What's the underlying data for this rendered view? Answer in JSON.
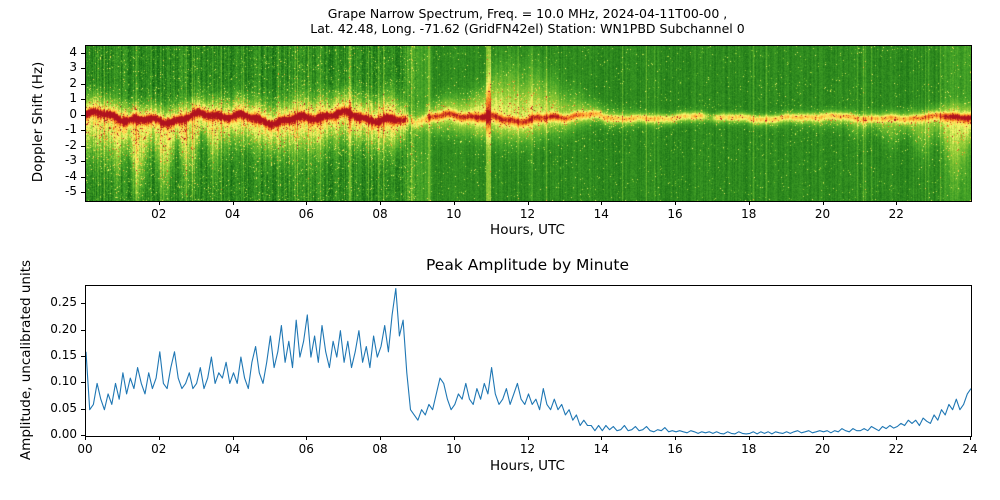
{
  "title": {
    "line1": "Grape Narrow Spectrum, Freq. = 10.0 MHz, 2024-04-11T00-00 ,",
    "line2": "Lat.  42.48, Long. -71.62 (GridFN42el) Station: WN1PBD Subchannel 0"
  },
  "chart_data": [
    {
      "type": "heatmap",
      "title": "",
      "xlabel": "Hours, UTC",
      "ylabel": "Doppler Shift (Hz)",
      "xlim": [
        0,
        24
      ],
      "ylim": [
        -5.5,
        4.5
      ],
      "x_ticks": [
        2,
        4,
        6,
        8,
        10,
        12,
        14,
        16,
        18,
        20,
        22
      ],
      "x_tick_labels": [
        "02",
        "04",
        "06",
        "08",
        "10",
        "12",
        "14",
        "16",
        "18",
        "20",
        "22"
      ],
      "y_ticks": [
        4,
        3,
        2,
        1,
        0,
        -1,
        -2,
        -3,
        -4,
        -5
      ],
      "y_tick_labels": [
        "4",
        "3",
        "2",
        "1",
        "0",
        "-1",
        "-2",
        "-3",
        "-4",
        "-5"
      ],
      "colormap_stops": [
        [
          0.0,
          10,
          95,
          15
        ],
        [
          0.3,
          70,
          165,
          40
        ],
        [
          0.5,
          150,
          205,
          55
        ],
        [
          0.63,
          250,
          250,
          110
        ],
        [
          0.78,
          255,
          190,
          60
        ],
        [
          0.88,
          243,
          110,
          30
        ],
        [
          1.0,
          175,
          18,
          30
        ]
      ],
      "background_level": 0.18,
      "carrier_center_hz": 0,
      "keyframes": [
        [
          0.0,
          1.0,
          0.8,
          1.8
        ],
        [
          1.5,
          1.0,
          0.7,
          2.3
        ],
        [
          3.0,
          1.0,
          0.7,
          1.8
        ],
        [
          4.0,
          1.0,
          0.8,
          1.2
        ],
        [
          6.0,
          1.0,
          0.9,
          1.5
        ],
        [
          7.5,
          1.0,
          0.9,
          1.2
        ],
        [
          8.3,
          1.05,
          1.1,
          1.4
        ],
        [
          8.6,
          0.9,
          0.8,
          1.0
        ],
        [
          8.75,
          0.3,
          0.4,
          0.5
        ],
        [
          9.2,
          0.45,
          0.5,
          0.6
        ],
        [
          9.5,
          0.75,
          0.7,
          0.8
        ],
        [
          10.3,
          0.8,
          0.8,
          0.8
        ],
        [
          10.85,
          1.0,
          1.3,
          1.0
        ],
        [
          11.0,
          0.9,
          1.8,
          1.0
        ],
        [
          11.5,
          0.85,
          2.2,
          1.0
        ],
        [
          12.3,
          0.8,
          1.8,
          0.9
        ],
        [
          13.0,
          0.65,
          1.1,
          0.7
        ],
        [
          13.8,
          0.55,
          0.5,
          0.45
        ],
        [
          15.0,
          0.5,
          0.3,
          0.35
        ],
        [
          16.7,
          0.5,
          0.25,
          0.3
        ],
        [
          16.9,
          0.18,
          0.2,
          0.25
        ],
        [
          17.1,
          0.48,
          0.22,
          0.3
        ],
        [
          19.0,
          0.5,
          0.25,
          0.35
        ],
        [
          21.0,
          0.52,
          0.3,
          0.6
        ],
        [
          22.0,
          0.55,
          0.35,
          0.9
        ],
        [
          23.0,
          0.6,
          0.4,
          1.3
        ],
        [
          23.6,
          0.7,
          0.6,
          1.9
        ],
        [
          24.0,
          0.7,
          0.5,
          1.6
        ]
      ]
    },
    {
      "type": "line",
      "title": "Peak Amplitude by Minute",
      "xlabel": "Hours, UTC",
      "ylabel": "Amplitude, uncalibrated units",
      "xlim": [
        0,
        24
      ],
      "ylim": [
        0,
        0.285
      ],
      "x_ticks": [
        0,
        2,
        4,
        6,
        8,
        10,
        12,
        14,
        16,
        18,
        20,
        22,
        24
      ],
      "x_tick_labels": [
        "00",
        "02",
        "04",
        "06",
        "08",
        "10",
        "12",
        "14",
        "16",
        "18",
        "20",
        "22",
        "24"
      ],
      "y_ticks": [
        0.0,
        0.05,
        0.1,
        0.15,
        0.2,
        0.25
      ],
      "y_tick_labels": [
        "0.00",
        "0.05",
        "0.10",
        "0.15",
        "0.20",
        "0.25"
      ],
      "line_color": "#1f77b4",
      "x_step_hours": 0.1,
      "values": [
        0.16,
        0.05,
        0.06,
        0.1,
        0.07,
        0.05,
        0.08,
        0.06,
        0.1,
        0.07,
        0.12,
        0.08,
        0.11,
        0.09,
        0.13,
        0.1,
        0.08,
        0.12,
        0.09,
        0.11,
        0.16,
        0.1,
        0.09,
        0.13,
        0.16,
        0.11,
        0.09,
        0.1,
        0.12,
        0.09,
        0.1,
        0.13,
        0.09,
        0.11,
        0.15,
        0.1,
        0.12,
        0.11,
        0.14,
        0.1,
        0.12,
        0.1,
        0.15,
        0.11,
        0.09,
        0.14,
        0.17,
        0.12,
        0.1,
        0.14,
        0.19,
        0.13,
        0.16,
        0.21,
        0.14,
        0.18,
        0.13,
        0.22,
        0.15,
        0.18,
        0.23,
        0.15,
        0.19,
        0.14,
        0.21,
        0.16,
        0.13,
        0.18,
        0.15,
        0.2,
        0.14,
        0.18,
        0.13,
        0.16,
        0.2,
        0.14,
        0.17,
        0.13,
        0.19,
        0.15,
        0.17,
        0.21,
        0.16,
        0.23,
        0.28,
        0.19,
        0.22,
        0.12,
        0.05,
        0.04,
        0.03,
        0.05,
        0.04,
        0.06,
        0.05,
        0.08,
        0.11,
        0.1,
        0.07,
        0.05,
        0.06,
        0.08,
        0.07,
        0.1,
        0.07,
        0.06,
        0.09,
        0.07,
        0.1,
        0.08,
        0.13,
        0.08,
        0.06,
        0.07,
        0.09,
        0.06,
        0.08,
        0.1,
        0.07,
        0.06,
        0.08,
        0.06,
        0.07,
        0.05,
        0.09,
        0.06,
        0.05,
        0.07,
        0.05,
        0.06,
        0.04,
        0.05,
        0.03,
        0.04,
        0.02,
        0.03,
        0.02,
        0.02,
        0.01,
        0.02,
        0.01,
        0.02,
        0.012,
        0.018,
        0.01,
        0.012,
        0.02,
        0.01,
        0.012,
        0.018,
        0.01,
        0.012,
        0.018,
        0.01,
        0.008,
        0.012,
        0.01,
        0.016,
        0.008,
        0.01,
        0.008,
        0.01,
        0.008,
        0.006,
        0.01,
        0.008,
        0.005,
        0.008,
        0.006,
        0.008,
        0.005,
        0.008,
        0.005,
        0.004,
        0.008,
        0.005,
        0.004,
        0.008,
        0.005,
        0.004,
        0.005,
        0.008,
        0.004,
        0.008,
        0.005,
        0.008,
        0.004,
        0.008,
        0.006,
        0.005,
        0.008,
        0.005,
        0.008,
        0.01,
        0.006,
        0.008,
        0.01,
        0.006,
        0.008,
        0.01,
        0.008,
        0.01,
        0.006,
        0.01,
        0.008,
        0.014,
        0.01,
        0.008,
        0.014,
        0.01,
        0.01,
        0.014,
        0.01,
        0.018,
        0.014,
        0.01,
        0.018,
        0.014,
        0.02,
        0.015,
        0.018,
        0.024,
        0.02,
        0.03,
        0.024,
        0.03,
        0.02,
        0.034,
        0.028,
        0.024,
        0.04,
        0.03,
        0.05,
        0.04,
        0.06,
        0.05,
        0.07,
        0.05,
        0.06,
        0.08,
        0.09
      ]
    }
  ]
}
